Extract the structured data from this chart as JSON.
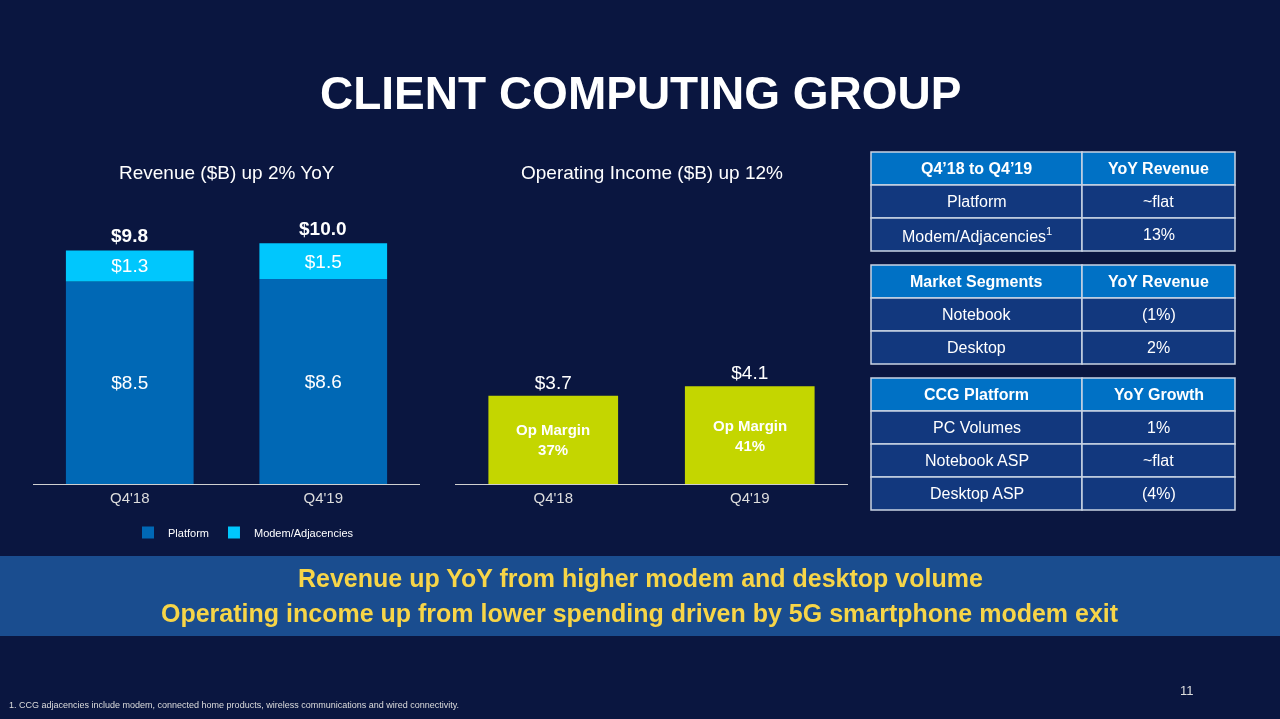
{
  "chart_data": [
    {
      "type": "bar",
      "title": "Revenue ($B) up 2% YoY",
      "categories": [
        "Q4'18",
        "Q4'19"
      ],
      "stacked": true,
      "legend": "bottom",
      "grid": false,
      "tick_labels": "x",
      "totals": [
        "$9.8",
        "$10.0"
      ],
      "series": [
        {
          "name": "Platform",
          "color": "#0068b5",
          "values": [
            8.5,
            8.6
          ],
          "value_labels": [
            "$8.5",
            "$8.6"
          ]
        },
        {
          "name": "Modem/Adjacencies",
          "color": "#00c7fd",
          "values": [
            1.3,
            1.5
          ],
          "value_labels": [
            "$1.3",
            "$1.5"
          ]
        }
      ]
    },
    {
      "type": "bar",
      "title": "Operating Income ($B) up 12%",
      "categories": [
        "Q4'18",
        "Q4'19"
      ],
      "grid": false,
      "tick_labels": "x",
      "color": "#c4d600",
      "values": [
        3.7,
        4.1
      ],
      "value_labels": [
        "$3.7",
        "$4.1"
      ],
      "annotations": [
        "Op Margin\n37%",
        "Op Margin\n41%"
      ]
    },
    {
      "type": "other",
      "categories": [
        "Q4’18 to Q4’19",
        "YoY Revenue"
      ],
      "annotations": [
        "Platform",
        "~flat",
        "Modem/Adjacencies$^{1}$",
        "13%"
      ]
    },
    {
      "type": "other",
      "categories": [
        "Market Segments",
        "YoY Revenue"
      ],
      "annotations": [
        "Notebook",
        "(1%)",
        "Desktop",
        "2%"
      ]
    },
    {
      "type": "other",
      "categories": [
        "CCG Platform",
        "YoY Growth"
      ],
      "annotations": [
        "PC Volumes",
        "1%",
        "Notebook ASP",
        "~flat",
        "Desktop ASP",
        "(4%)"
      ]
    },
    {
      "type": "other",
      "title": "CLIENT COMPUTING GROUP",
      "annotations": [
        "Revenue up YoY from higher modem and desktop volume",
        "Operating income up from lower spending driven by 5G smartphone modem exit",
        "1. CCG adjacencies include modem, connected home products, wireless communications and wired connectivity.",
        "11"
      ]
    }
  ]
}
